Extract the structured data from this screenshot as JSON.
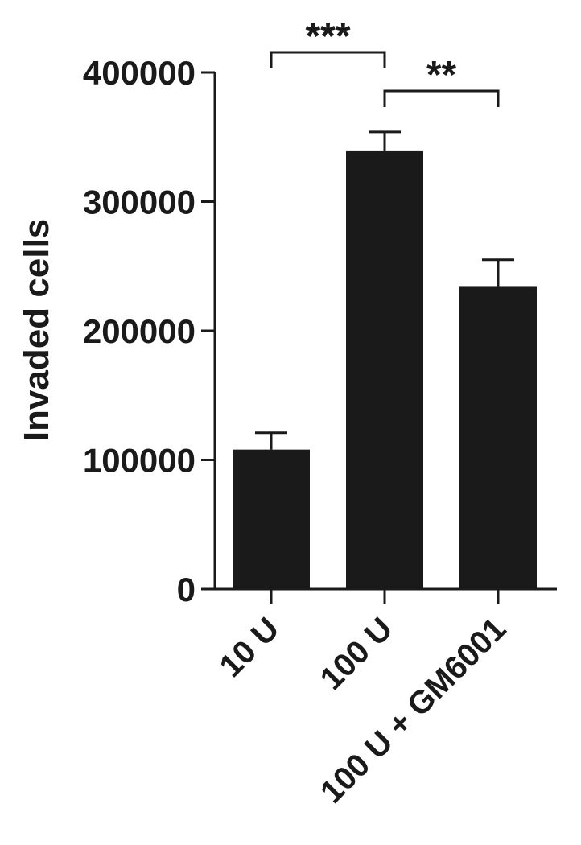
{
  "chart_data": {
    "type": "bar",
    "y_label": "Invaded cells",
    "categories": [
      "10 U",
      "100 U",
      "100 U + GM6001"
    ],
    "values": [
      108000,
      339000,
      234000
    ],
    "errors": [
      13000,
      15000,
      21000
    ],
    "color": "#1a1a1a",
    "ylim": [
      0,
      400000
    ],
    "yticks": [
      0,
      100000,
      200000,
      300000,
      400000
    ],
    "annotations": [
      {
        "text": "***",
        "between": [
          "10 U",
          "100 U"
        ]
      },
      {
        "text": "**",
        "between": [
          "100 U",
          "100 U + GM6001"
        ]
      }
    ]
  }
}
